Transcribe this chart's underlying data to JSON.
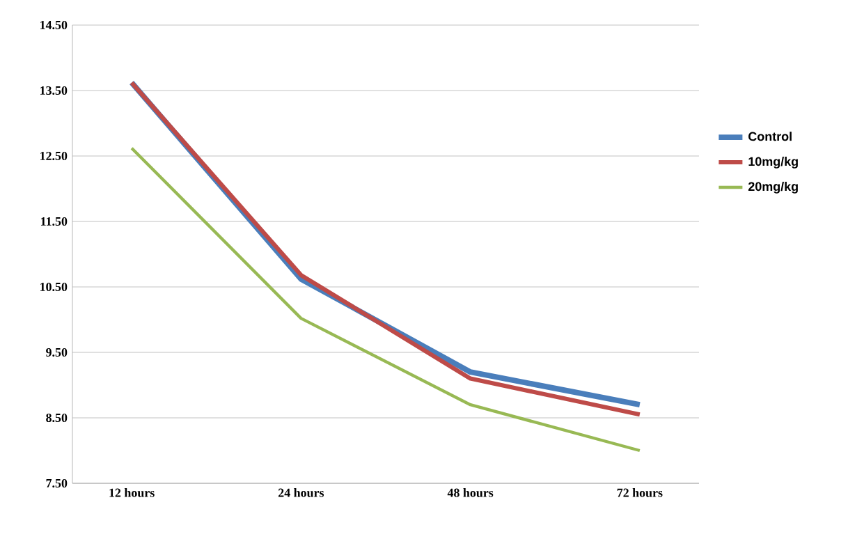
{
  "chart_data": {
    "type": "line",
    "categories": [
      "12 hours",
      "24 hours",
      "48 hours",
      "72 hours"
    ],
    "series": [
      {
        "name": "Control",
        "color": "#4a7ebb",
        "values": [
          13.62,
          10.62,
          9.2,
          8.7
        ]
      },
      {
        "name": "10mg/kg",
        "color": "#be4b48",
        "values": [
          13.62,
          10.68,
          9.1,
          8.55
        ]
      },
      {
        "name": "20mg/kg",
        "color": "#98b954",
        "values": [
          12.62,
          10.02,
          8.7,
          8.0
        ]
      }
    ],
    "ylim": [
      7.5,
      14.5
    ],
    "yticks": [
      {
        "value": 7.5,
        "label": "7.50"
      },
      {
        "value": 8.5,
        "label": "8.50"
      },
      {
        "value": 9.5,
        "label": "9.50"
      },
      {
        "value": 10.5,
        "label": "10.50"
      },
      {
        "value": 11.5,
        "label": "11.50"
      },
      {
        "value": 12.5,
        "label": "12.50"
      },
      {
        "value": 13.5,
        "label": "13.50"
      },
      {
        "value": 14.5,
        "label": "14.50"
      }
    ],
    "grid": "y",
    "legend": "right",
    "marker": "none",
    "line_style": "solid"
  }
}
